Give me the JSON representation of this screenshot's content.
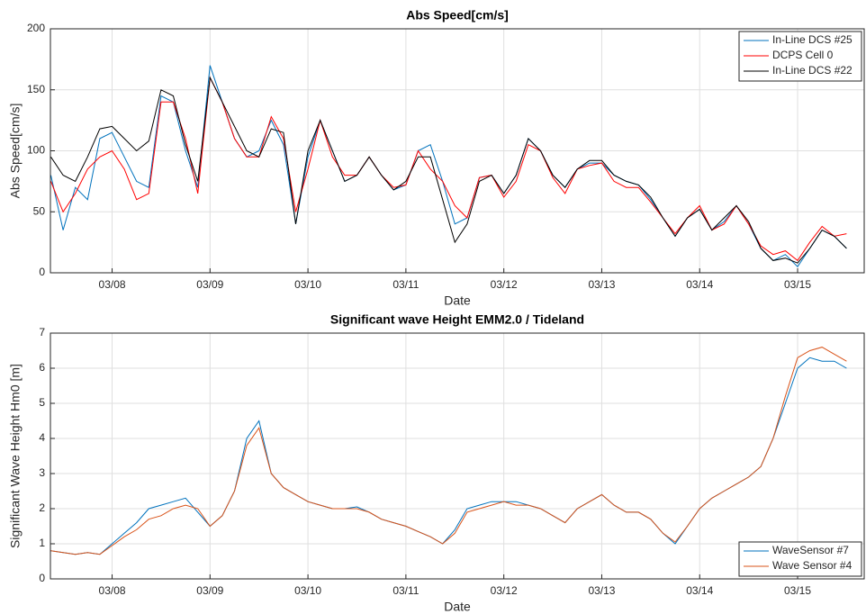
{
  "chart_data": [
    {
      "type": "line",
      "title": "Abs Speed[cm/s]",
      "x_label": "Date",
      "y_label": "Abs Speed[cm/s]",
      "x": [
        7.375,
        7.5,
        7.625,
        7.75,
        7.875,
        8.0,
        8.125,
        8.25,
        8.375,
        8.5,
        8.625,
        8.75,
        8.875,
        9.0,
        9.125,
        9.25,
        9.375,
        9.5,
        9.625,
        9.75,
        9.875,
        10.0,
        10.125,
        10.25,
        10.375,
        10.5,
        10.625,
        10.75,
        10.875,
        11.0,
        11.125,
        11.25,
        11.375,
        11.5,
        11.625,
        11.75,
        11.875,
        12.0,
        12.125,
        12.25,
        12.375,
        12.5,
        12.625,
        12.75,
        12.875,
        13.0,
        13.125,
        13.25,
        13.375,
        13.5,
        13.625,
        13.75,
        13.875,
        14.0,
        14.125,
        14.25,
        14.375,
        14.5,
        14.625,
        14.75,
        14.875,
        15.0,
        15.125,
        15.25,
        15.375,
        15.5
      ],
      "series": [
        {
          "name": "In-Line DCS #25",
          "color": "#0072BD",
          "values": [
            80,
            35,
            70,
            60,
            110,
            115,
            95,
            75,
            70,
            145,
            140,
            100,
            70,
            170,
            140,
            110,
            95,
            100,
            125,
            105,
            40,
            95,
            125,
            100,
            75,
            80,
            95,
            80,
            68,
            72,
            100,
            105,
            75,
            40,
            45,
            78,
            80,
            65,
            80,
            110,
            100,
            80,
            70,
            85,
            90,
            90,
            80,
            75,
            72,
            60,
            45,
            30,
            45,
            52,
            35,
            42,
            55,
            40,
            20,
            10,
            15,
            5,
            20,
            35,
            30,
            20
          ]
        },
        {
          "name": "DCPS Cell 0",
          "color": "#FF0000",
          "values": [
            75,
            50,
            65,
            85,
            95,
            100,
            85,
            60,
            65,
            140,
            140,
            110,
            65,
            160,
            140,
            110,
            95,
            95,
            128,
            110,
            50,
            85,
            125,
            95,
            80,
            80,
            95,
            80,
            70,
            72,
            100,
            85,
            75,
            55,
            45,
            78,
            80,
            62,
            75,
            105,
            100,
            78,
            65,
            85,
            88,
            90,
            75,
            70,
            70,
            58,
            45,
            32,
            45,
            55,
            35,
            40,
            55,
            40,
            22,
            15,
            18,
            10,
            25,
            38,
            30,
            32
          ]
        },
        {
          "name": "In-Line DCS #22",
          "color": "#000000",
          "values": [
            95,
            80,
            75,
            95,
            118,
            120,
            110,
            100,
            108,
            150,
            145,
            105,
            75,
            160,
            140,
            120,
            100,
            95,
            118,
            115,
            40,
            100,
            125,
            100,
            75,
            80,
            95,
            80,
            68,
            75,
            95,
            95,
            60,
            25,
            40,
            75,
            80,
            65,
            80,
            110,
            100,
            80,
            70,
            85,
            92,
            92,
            80,
            75,
            72,
            62,
            45,
            30,
            45,
            52,
            35,
            45,
            55,
            42,
            20,
            10,
            12,
            8,
            20,
            35,
            30,
            20
          ]
        }
      ],
      "xlim": [
        7.37,
        15.68
      ],
      "xticks": [
        {
          "value": 8,
          "label": "03/08"
        },
        {
          "value": 9,
          "label": "03/09"
        },
        {
          "value": 10,
          "label": "03/10"
        },
        {
          "value": 11,
          "label": "03/11"
        },
        {
          "value": 12,
          "label": "03/12"
        },
        {
          "value": 13,
          "label": "03/13"
        },
        {
          "value": 14,
          "label": "03/14"
        },
        {
          "value": 15,
          "label": "03/15"
        }
      ],
      "ylim": [
        0,
        200
      ],
      "yticks": [
        0,
        50,
        100,
        150,
        200
      ],
      "grid": true,
      "legend": "upper-right"
    },
    {
      "type": "line",
      "title": "Significant wave Height EMM2.0 / Tideland",
      "x_label": "Date",
      "y_label": "Significant Wave Height Hm0 [m]",
      "x": [
        7.375,
        7.5,
        7.625,
        7.75,
        7.875,
        8.0,
        8.125,
        8.25,
        8.375,
        8.5,
        8.625,
        8.75,
        8.875,
        9.0,
        9.125,
        9.25,
        9.375,
        9.5,
        9.625,
        9.75,
        9.875,
        10.0,
        10.125,
        10.25,
        10.375,
        10.5,
        10.625,
        10.75,
        10.875,
        11.0,
        11.125,
        11.25,
        11.375,
        11.5,
        11.625,
        11.75,
        11.875,
        12.0,
        12.125,
        12.25,
        12.375,
        12.5,
        12.625,
        12.75,
        12.875,
        13.0,
        13.125,
        13.25,
        13.375,
        13.5,
        13.625,
        13.75,
        13.875,
        14.0,
        14.125,
        14.25,
        14.375,
        14.5,
        14.625,
        14.75,
        14.875,
        15.0,
        15.125,
        15.25,
        15.375,
        15.5
      ],
      "series": [
        {
          "name": "WaveSensor #7",
          "color": "#0072BD",
          "values": [
            0.8,
            0.75,
            0.7,
            0.75,
            0.7,
            1.0,
            1.3,
            1.6,
            2.0,
            2.1,
            2.2,
            2.3,
            1.9,
            1.5,
            1.8,
            2.5,
            4.0,
            4.5,
            3.0,
            2.6,
            2.4,
            2.2,
            2.1,
            2.0,
            2.0,
            2.05,
            1.9,
            1.7,
            1.6,
            1.5,
            1.35,
            1.2,
            1.0,
            1.4,
            2.0,
            2.1,
            2.2,
            2.2,
            2.2,
            2.1,
            2.0,
            1.8,
            1.6,
            2.0,
            2.2,
            2.4,
            2.1,
            1.9,
            1.9,
            1.7,
            1.3,
            1.0,
            1.5,
            2.0,
            2.3,
            2.5,
            2.7,
            2.9,
            3.2,
            4.0,
            5.0,
            6.0,
            6.3,
            6.2,
            6.2,
            6.0
          ]
        },
        {
          "name": "Wave Sensor #4",
          "color": "#D95319",
          "values": [
            0.8,
            0.75,
            0.7,
            0.75,
            0.7,
            0.95,
            1.2,
            1.4,
            1.7,
            1.8,
            2.0,
            2.1,
            2.0,
            1.5,
            1.8,
            2.5,
            3.8,
            4.3,
            3.0,
            2.6,
            2.4,
            2.2,
            2.1,
            2.0,
            2.0,
            2.0,
            1.9,
            1.7,
            1.6,
            1.5,
            1.35,
            1.2,
            1.0,
            1.3,
            1.9,
            2.0,
            2.1,
            2.2,
            2.1,
            2.1,
            2.0,
            1.8,
            1.6,
            2.0,
            2.2,
            2.4,
            2.1,
            1.9,
            1.9,
            1.7,
            1.3,
            1.05,
            1.5,
            2.0,
            2.3,
            2.5,
            2.7,
            2.9,
            3.2,
            4.0,
            5.2,
            6.3,
            6.5,
            6.6,
            6.4,
            6.2
          ]
        }
      ],
      "xlim": [
        7.37,
        15.68
      ],
      "xticks": [
        {
          "value": 8,
          "label": "03/08"
        },
        {
          "value": 9,
          "label": "03/09"
        },
        {
          "value": 10,
          "label": "03/10"
        },
        {
          "value": 11,
          "label": "03/11"
        },
        {
          "value": 12,
          "label": "03/12"
        },
        {
          "value": 13,
          "label": "03/13"
        },
        {
          "value": 14,
          "label": "03/14"
        },
        {
          "value": 15,
          "label": "03/15"
        }
      ],
      "ylim": [
        0,
        7
      ],
      "yticks": [
        0,
        1,
        2,
        3,
        4,
        5,
        6,
        7
      ],
      "grid": true,
      "legend": "lower-right"
    }
  ]
}
